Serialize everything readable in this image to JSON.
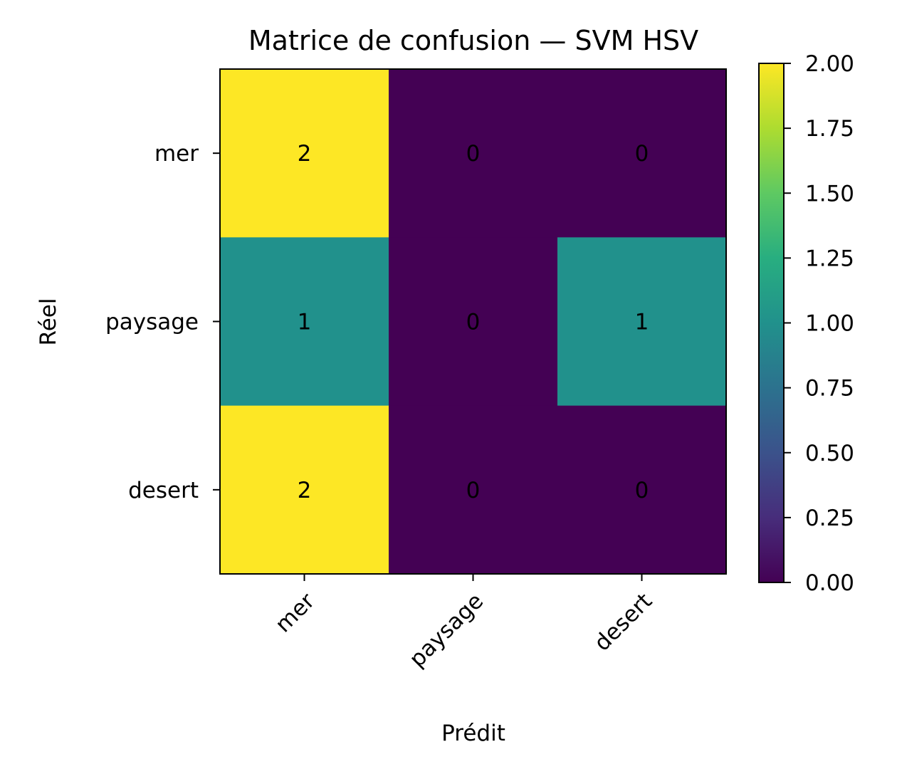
{
  "chart_data": {
    "type": "heatmap",
    "title": "Matrice de confusion — SVM HSV",
    "xlabel": "Prédit",
    "ylabel": "Réel",
    "x_categories": [
      "mer",
      "paysage",
      "desert"
    ],
    "y_categories": [
      "mer",
      "paysage",
      "desert"
    ],
    "values": [
      [
        2,
        0,
        0
      ],
      [
        1,
        0,
        1
      ],
      [
        2,
        0,
        0
      ]
    ],
    "colormap": "viridis",
    "vmin": 0,
    "vmax": 2,
    "colorbar_ticks": [
      "0.00",
      "0.25",
      "0.50",
      "0.75",
      "1.00",
      "1.25",
      "1.50",
      "1.75",
      "2.00"
    ],
    "colors": {
      "low": "#440154",
      "mid": "#21918c",
      "high": "#fde725"
    }
  }
}
